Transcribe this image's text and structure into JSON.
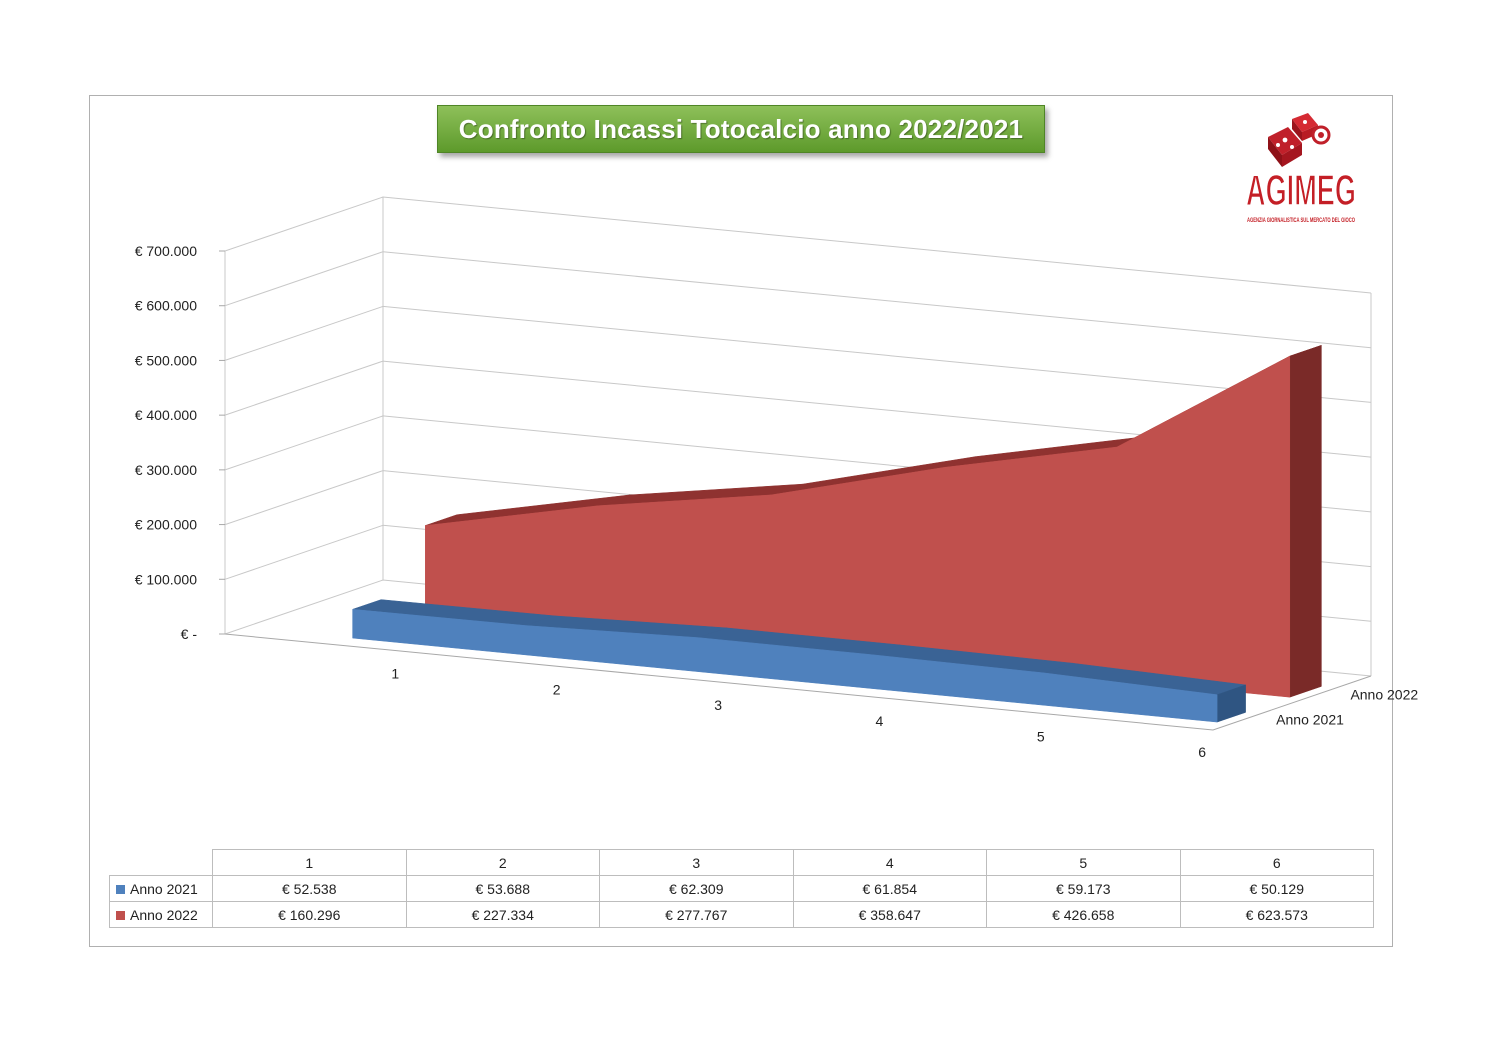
{
  "chart_data": {
    "type": "area",
    "title": "Confronto Incassi Totocalcio anno 2022/2021",
    "categories": [
      "1",
      "2",
      "3",
      "4",
      "5",
      "6"
    ],
    "series": [
      {
        "name": "Anno 2021",
        "values": [
          52538,
          53688,
          62309,
          61854,
          59173,
          50129
        ],
        "color": "#4f81bd",
        "labels": [
          "€ 52.538",
          "€ 53.688",
          "€ 62.309",
          "€ 61.854",
          "€ 59.173",
          "€ 50.129"
        ]
      },
      {
        "name": "Anno 2022",
        "values": [
          160296,
          227334,
          277767,
          358647,
          426658,
          623573
        ],
        "color": "#c0504d",
        "labels": [
          "€ 160.296",
          "€ 227.334",
          "€ 277.767",
          "€ 358.647",
          "€ 426.658",
          "€ 623.573"
        ]
      }
    ],
    "y_ticks": [
      "€ -",
      "€ 100.000",
      "€ 200.000",
      "€ 300.000",
      "€ 400.000",
      "€ 500.000",
      "€ 600.000",
      "€ 700.000"
    ],
    "ylim": [
      0,
      700000
    ],
    "grid": true,
    "legend": "data-table",
    "chart_style": "3d-area"
  },
  "logo": {
    "text": "AGIMEG",
    "subtitle": "AGENZIA GIORNALISTICA SUL MERCATO DEL GIOCO"
  }
}
